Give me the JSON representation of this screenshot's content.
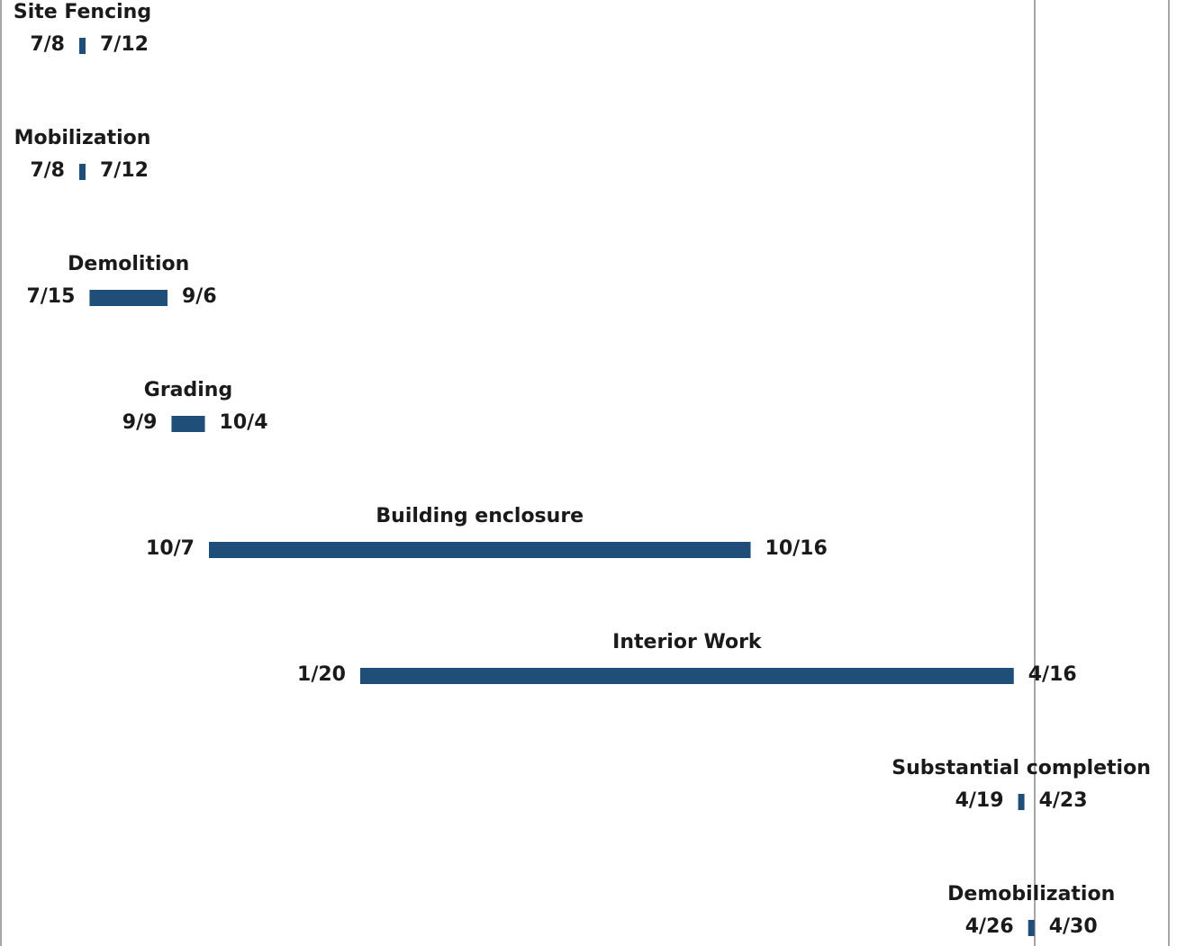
{
  "chart_data": {
    "type": "gantt",
    "title": "",
    "xlabel": "",
    "ylabel": "",
    "grid": false,
    "legend": "none",
    "bar_color": "#1f4e79",
    "frame_color": "#8a8a8a",
    "tasks": [
      {
        "name": "Site Fencing",
        "start": "7/8",
        "end": "7/12",
        "start_date": "2019-07-08",
        "end_date": "2019-07-12"
      },
      {
        "name": "Mobilization",
        "start": "7/8",
        "end": "7/12",
        "start_date": "2019-07-08",
        "end_date": "2019-07-12"
      },
      {
        "name": "Demolition",
        "start": "7/15",
        "end": "9/6",
        "start_date": "2019-07-15",
        "end_date": "2019-09-06"
      },
      {
        "name": "Grading",
        "start": "9/9",
        "end": "10/4",
        "start_date": "2019-09-09",
        "end_date": "2019-10-04"
      },
      {
        "name": "Building enclosure",
        "start": "10/7",
        "end": "10/16",
        "start_date": "2019-10-07",
        "end_date": "2020-10-16"
      },
      {
        "name": "Interior Work",
        "start": "1/20",
        "end": "4/16",
        "start_date": "2020-01-20",
        "end_date": "2021-04-16"
      },
      {
        "name": "Substantial completion",
        "start": "4/19",
        "end": "4/23",
        "start_date": "2021-04-19",
        "end_date": "2021-04-23"
      },
      {
        "name": "Demobilization",
        "start": "4/26",
        "end": "4/30",
        "start_date": "2021-04-26",
        "end_date": "2021-04-30"
      }
    ]
  }
}
